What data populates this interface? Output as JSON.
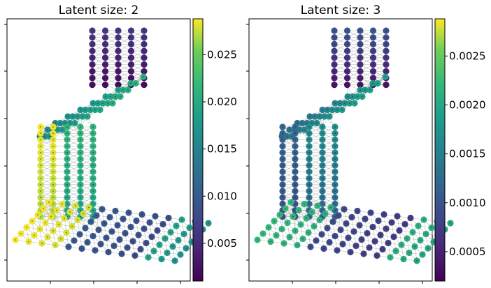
{
  "chart_data": [
    {
      "type": "scatter",
      "title": "Latent size: 2",
      "colormap": "viridis",
      "colorbar": {
        "vmin": 0.001,
        "vmax": 0.0288,
        "ticks": [
          "0.005",
          "0.010",
          "0.015",
          "0.020",
          "0.025"
        ],
        "tick_values": [
          0.005,
          0.01,
          0.015,
          0.02,
          0.025
        ]
      },
      "regions": {
        "top_block": [
          0.0012,
          0.0062
        ],
        "upper_diagonal": [
          0.015,
          0.0205
        ],
        "left_outer_columns": [
          0.0265,
          0.0285
        ],
        "left_inner_columns": [
          0.019,
          0.0215
        ],
        "bottom_near_left": [
          0.025,
          0.0285
        ],
        "bottom_middle": [
          0.007,
          0.011
        ],
        "bottom_far_right": [
          0.015,
          0.0285
        ]
      },
      "grid_mesh": true,
      "axis_ticklabels": false
    },
    {
      "type": "scatter",
      "title": "Latent size: 3",
      "colormap": "viridis",
      "colorbar": {
        "vmin": 0.0002,
        "vmax": 0.00288,
        "ticks": [
          "0.0005",
          "0.0010",
          "0.0015",
          "0.0020",
          "0.0025"
        ],
        "tick_values": [
          0.0005,
          0.001,
          0.0015,
          0.002,
          0.0025
        ]
      },
      "regions": {
        "top_block": [
          0.00025,
          0.001
        ],
        "upper_diagonal": [
          0.0012,
          0.0019
        ],
        "left_outer_columns": [
          0.0009,
          0.0012
        ],
        "left_inner_columns": [
          0.0011,
          0.0017
        ],
        "bottom_near_left": [
          0.0018,
          0.0022
        ],
        "bottom_middle": [
          0.0006,
          0.001
        ],
        "bottom_far_right": [
          0.0018,
          0.0028
        ]
      },
      "grid_mesh": true,
      "axis_ticklabels": false
    }
  ]
}
